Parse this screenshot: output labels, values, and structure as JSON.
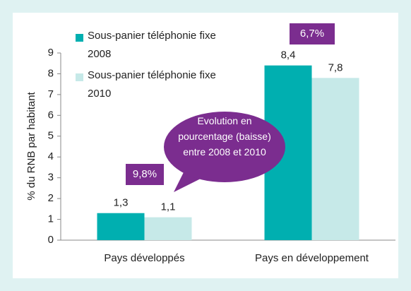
{
  "chart_data": {
    "type": "bar",
    "ylabel": "% du RNB par habitant",
    "categories": [
      "Pays développés",
      "Pays en développement"
    ],
    "series": [
      {
        "name": "Sous-panier téléphonie fixe 2008",
        "color": "#00afb0",
        "values": [
          1.3,
          8.4
        ],
        "value_labels": [
          "1,3",
          "8,4"
        ]
      },
      {
        "name": "Sous-panier téléphonie fixe 2010",
        "color": "#c6e9e8",
        "values": [
          1.1,
          7.8
        ],
        "value_labels": [
          "1,1",
          "7,8"
        ]
      }
    ],
    "ylim": [
      0,
      9
    ],
    "yticks": [
      0,
      1,
      2,
      3,
      4,
      5,
      6,
      7,
      8,
      9
    ],
    "grid": false,
    "annotations": [
      "9,8%",
      "6,7%",
      "Evolution en pourcentage (baisse) entre 2008 et 2010"
    ],
    "annotation_color": "#7b2d8f"
  }
}
